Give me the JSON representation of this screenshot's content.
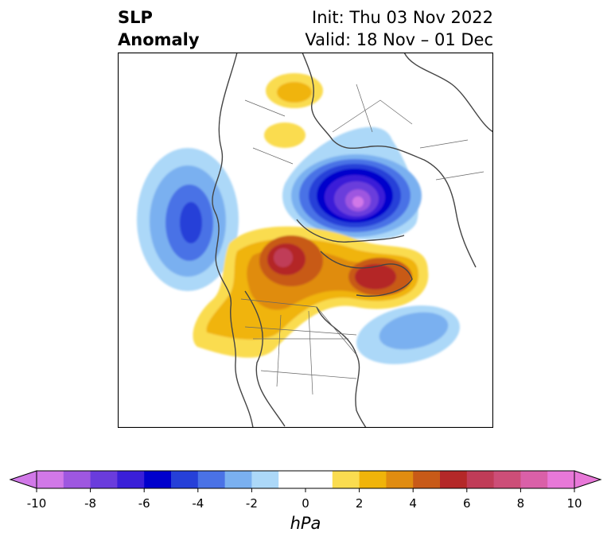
{
  "title": {
    "left_line1": "SLP",
    "left_line2": "Anomaly",
    "right_line1": "Init: Thu 03 Nov 2022",
    "right_line2": "Valid: 18 Nov – 01 Dec"
  },
  "map": {
    "anomaly_centers": [
      {
        "sign": "negative",
        "level": -10,
        "region": "Arctic / Siberian side of pole"
      },
      {
        "sign": "negative",
        "level": -6,
        "region": "North Pacific"
      },
      {
        "sign": "negative",
        "level": -3,
        "region": "North Atlantic"
      },
      {
        "sign": "positive",
        "level": 5,
        "region": "Greenland"
      },
      {
        "sign": "positive",
        "level": 6,
        "region": "Alaska / Beaufort Sea"
      },
      {
        "sign": "positive",
        "level": 2,
        "region": "Northern Europe"
      },
      {
        "sign": "positive",
        "level": 2,
        "region": "Central Siberia"
      }
    ]
  },
  "colorbar": {
    "unit": "hPa",
    "ticks": [
      "-10",
      "-8",
      "-6",
      "-4",
      "-2",
      "0",
      "2",
      "4",
      "6",
      "8",
      "10"
    ],
    "colors": [
      "#d178e8",
      "#9e57e0",
      "#6a3cdc",
      "#3a1fd8",
      "#0000cc",
      "#2640d8",
      "#4a72e6",
      "#7ab0f0",
      "#acd8f8",
      "#ffffff",
      "#ffffff",
      "#fadc50",
      "#f0b40a",
      "#e08c10",
      "#c85a18",
      "#b42828",
      "#c03c58",
      "#cc4e78",
      "#da60a8",
      "#e878d8"
    ],
    "extend_min_color": "#d178e8",
    "extend_max_color": "#e878d8"
  }
}
